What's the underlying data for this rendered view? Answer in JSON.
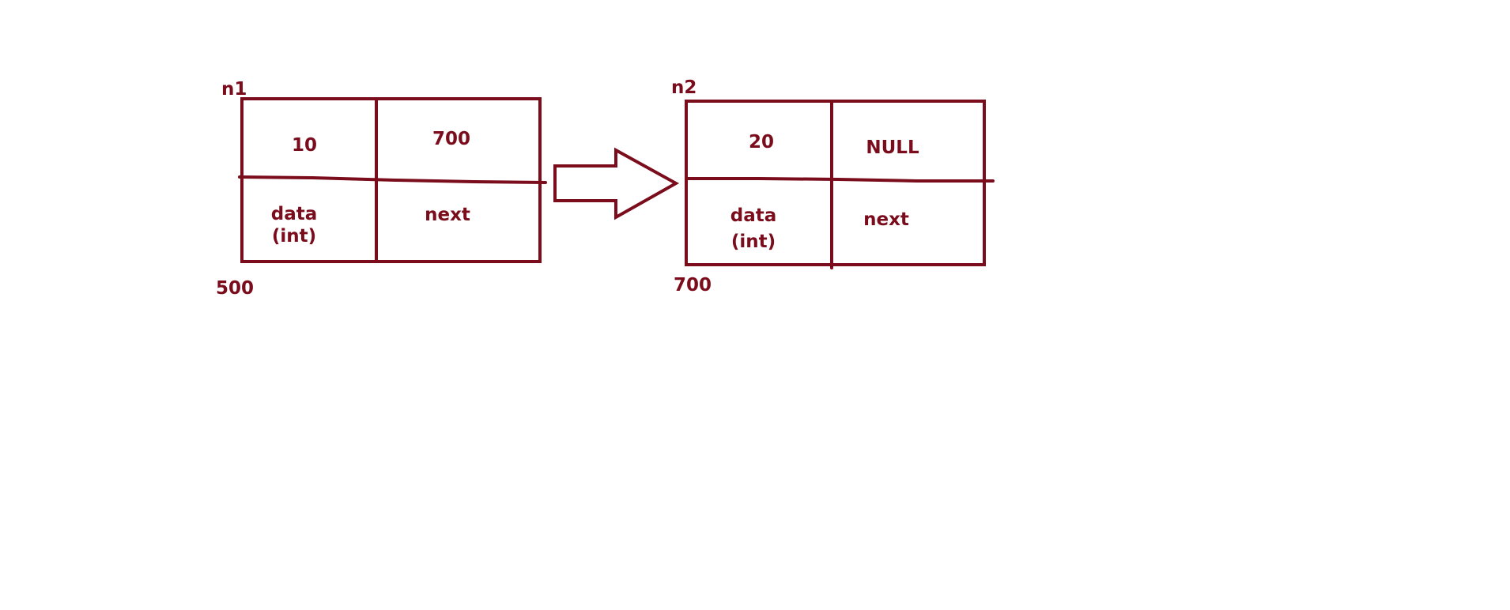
{
  "diagram": {
    "colors": {
      "ink": "#7a0c1c",
      "background": "#ffffff"
    },
    "node1": {
      "name": "n1",
      "address": "500",
      "data_value": "10",
      "next_value": "700",
      "data_label": "data",
      "data_type": "(int)",
      "next_label": "next"
    },
    "node2": {
      "name": "n2",
      "address": "700",
      "data_value": "20",
      "next_value": "NULL",
      "data_label": "data",
      "data_type": "(int)",
      "next_label": "next"
    },
    "link_arrow": "block-arrow-icon"
  }
}
